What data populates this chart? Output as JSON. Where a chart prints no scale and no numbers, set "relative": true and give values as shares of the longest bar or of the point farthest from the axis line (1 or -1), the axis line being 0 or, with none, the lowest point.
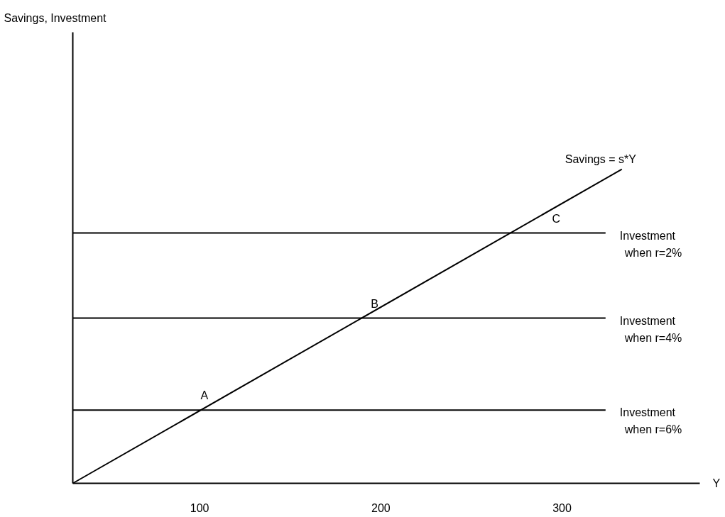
{
  "chart_data": {
    "type": "line",
    "relative": true,
    "xlabel": "Y",
    "xlim": [
      30,
      376
    ],
    "xticks": [
      100,
      200,
      300
    ],
    "tick_labels": "x",
    "grid": false,
    "legend": false,
    "marker": "none",
    "line_style": "solid",
    "series": [
      {
        "name": "Savings = s*Y",
        "color": "#000000",
        "x": [
          30,
          333
        ],
        "values": [
          0,
          1
        ]
      },
      {
        "name": "Investment when r=2%",
        "color": "#000000",
        "x": [
          30,
          324
        ],
        "values": [
          0.797,
          0.797
        ]
      },
      {
        "name": "Investment when r=4%",
        "color": "#000000",
        "x": [
          30,
          324
        ],
        "values": [
          0.526,
          0.526
        ]
      },
      {
        "name": "Investment when r=6%",
        "color": "#000000",
        "x": [
          30,
          324
        ],
        "values": [
          0.233,
          0.233
        ]
      }
    ],
    "annotations": [
      "Savings, Investment",
      {
        "text": "A",
        "x": 106,
        "y": 0.233
      },
      {
        "text": "B",
        "x": 200,
        "y": 0.526
      },
      {
        "text": "C",
        "x": 300,
        "y": 0.797
      }
    ]
  }
}
